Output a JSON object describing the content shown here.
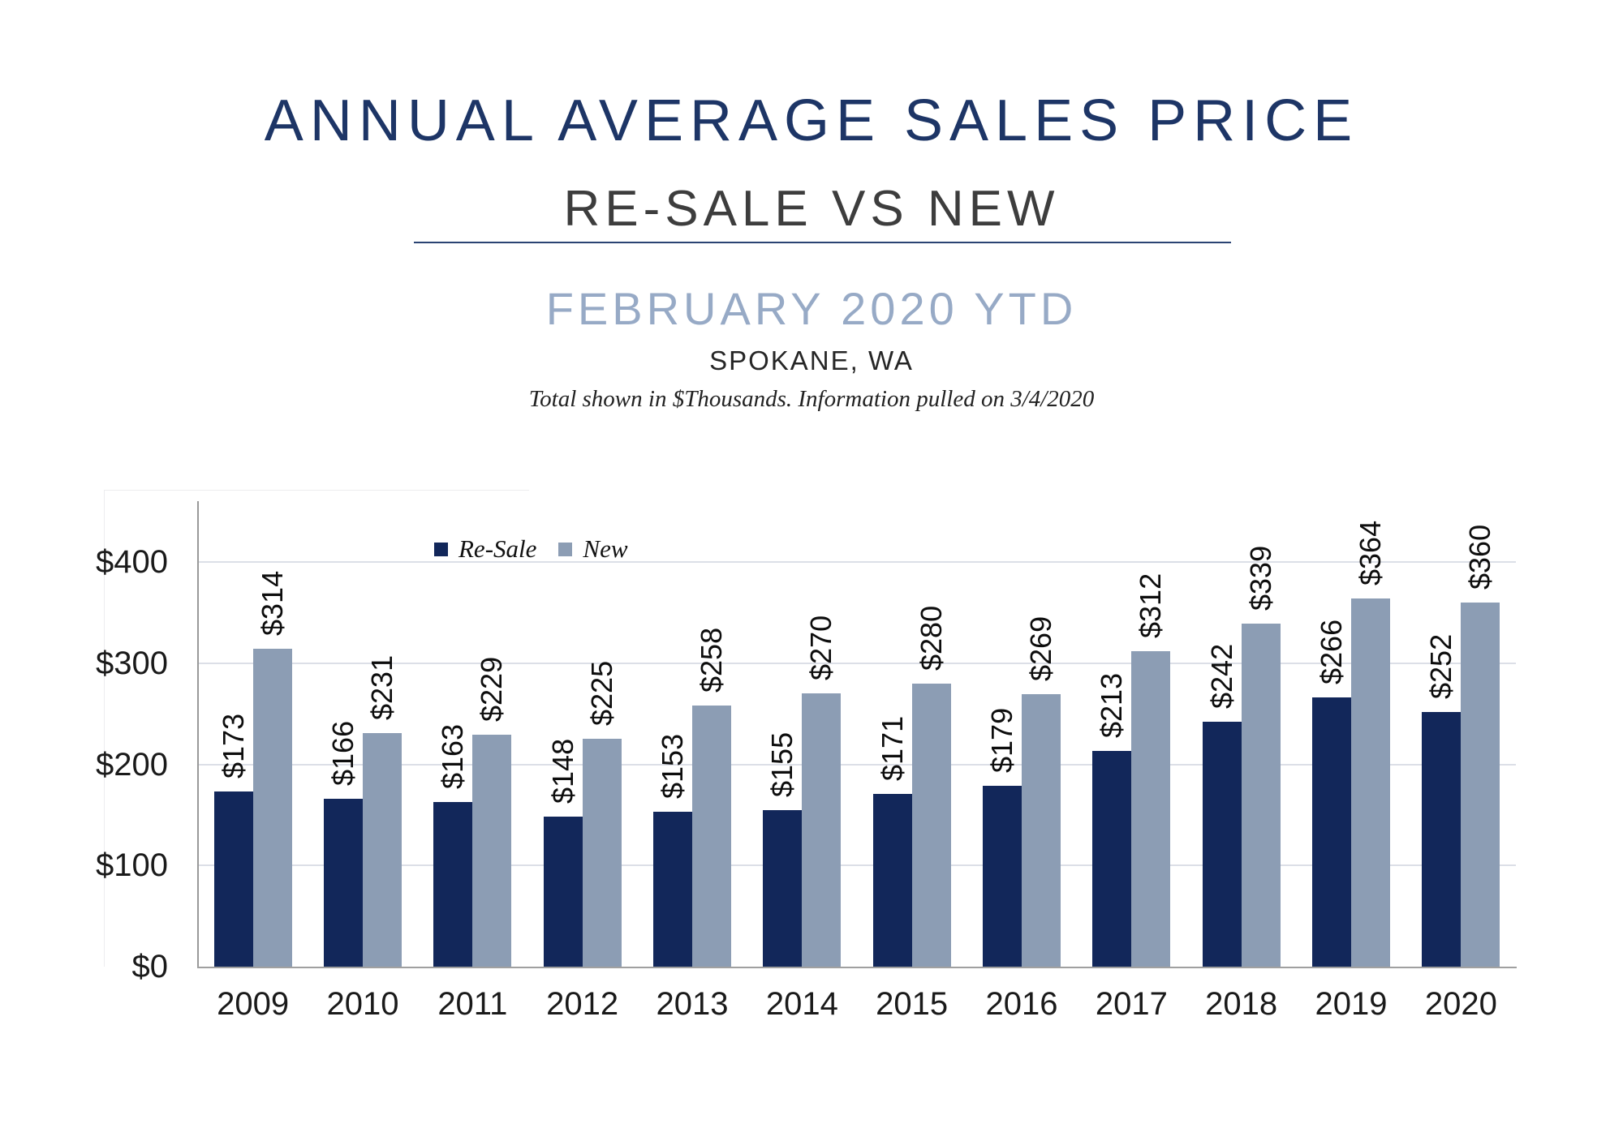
{
  "header": {
    "title": "ANNUAL AVERAGE SALES PRICE",
    "subtitle": "RE-SALE VS NEW",
    "period": "FEBRUARY 2020 YTD",
    "location": "SPOKANE, WA",
    "footnote": "Total shown in $Thousands. Information pulled on 3/4/2020"
  },
  "chart_data": {
    "type": "bar",
    "title": "Annual Average Sales Price, Re-Sale vs New, February 2020 YTD, Spokane WA",
    "categories": [
      "2009",
      "2010",
      "2011",
      "2012",
      "2013",
      "2014",
      "2015",
      "2016",
      "2017",
      "2018",
      "2019",
      "2020"
    ],
    "series": [
      {
        "name": "Re-Sale",
        "color": "#12275a",
        "values": [
          173,
          166,
          163,
          148,
          153,
          155,
          171,
          179,
          213,
          242,
          266,
          252
        ]
      },
      {
        "name": "New",
        "color": "#8c9db4",
        "values": [
          314,
          231,
          229,
          225,
          258,
          270,
          280,
          269,
          312,
          339,
          364,
          360
        ]
      }
    ],
    "value_prefix": "$",
    "units": "$Thousands",
    "xlabel": "",
    "ylabel": "",
    "ylim": [
      0,
      450
    ],
    "y_ticks": [
      {
        "label": "$0",
        "value": 0
      },
      {
        "label": "$100",
        "value": 100
      },
      {
        "label": "$200",
        "value": 200
      },
      {
        "label": "$300",
        "value": 300
      },
      {
        "label": "$400",
        "value": 400
      }
    ],
    "grid": true,
    "legend_position": "inside-top-left",
    "data_labels": "rotated-90"
  }
}
